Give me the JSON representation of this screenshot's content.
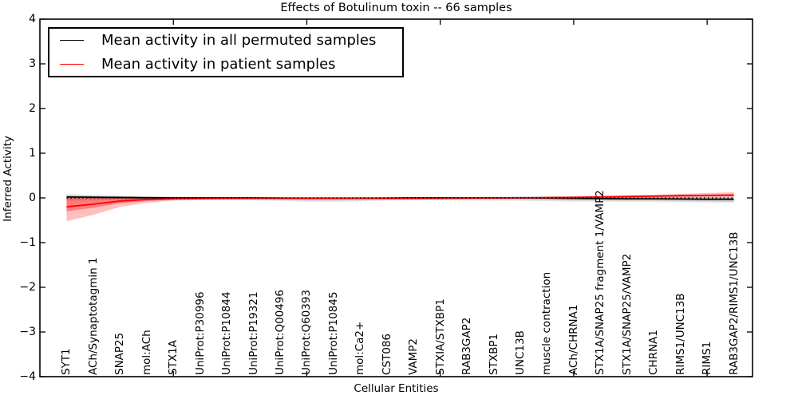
{
  "figure": {
    "title": "Effects of Botulinum toxin -- 66 samples",
    "xlabel": "Cellular Entities",
    "ylabel": "Inferred Activity"
  },
  "legend": {
    "position": "upper-left",
    "items": [
      {
        "label": "Mean activity in all permuted samples",
        "color": "#000000"
      },
      {
        "label": "Mean activity in patient samples",
        "color": "#ff0000"
      }
    ]
  },
  "chart_data": {
    "type": "line",
    "title": "Effects of Botulinum toxin -- 66 samples",
    "xlabel": "Cellular Entities",
    "ylabel": "Inferred Activity",
    "grid": false,
    "ylim": [
      -4,
      4
    ],
    "y_ticks": [
      4,
      3,
      2,
      1,
      0,
      -1,
      -2,
      -3,
      -4
    ],
    "y_tick_labels": [
      "4",
      "3",
      "2",
      "1",
      "0",
      "−1",
      "−2",
      "−3",
      "−4"
    ],
    "x_axis_range": [
      0,
      26.7
    ],
    "x_tick_values": [
      5,
      10,
      15,
      20,
      25
    ],
    "categories": [
      "SYT1",
      "ACh/Synaptotagmin 1",
      "SNAP25",
      "mol:ACh",
      "STX1A",
      "UniProt:P30996",
      "UniProt:P10844",
      "UniProt:P19321",
      "UniProt:Q00496",
      "UniProt:Q60393",
      "UniProt:P10845",
      "mol:Ca2+",
      "CST086",
      "VAMP2",
      "STXIA/STXBP1",
      "RAB3GAP2",
      "STXBP1",
      "UNC13B",
      "muscle contraction",
      "ACh/CHRNA1",
      "STX1A/SNAP25 fragment 1/VAMP2",
      "STX1A/SNAP25/VAMP2",
      "CHRNA1",
      "RIMS1/UNC13B",
      "RIMS1",
      "RAB3GAP2/RIMS1/UNC13B"
    ],
    "series": [
      {
        "id": "permuted",
        "name": "Mean activity in all permuted samples",
        "color": "#000000",
        "values": [
          0.02,
          0.015,
          0.01,
          0.005,
          0,
          0,
          0,
          0,
          -0.005,
          -0.01,
          -0.01,
          -0.01,
          -0.005,
          0,
          0,
          0,
          0,
          0,
          -0.005,
          -0.01,
          -0.015,
          -0.02,
          -0.02,
          -0.025,
          -0.03,
          -0.03
        ]
      },
      {
        "id": "patient",
        "name": "Mean activity in patient samples",
        "color": "#ff0000",
        "values": [
          -0.2,
          -0.14,
          -0.07,
          -0.035,
          -0.02,
          -0.015,
          -0.01,
          -0.01,
          -0.01,
          -0.01,
          -0.01,
          -0.01,
          -0.01,
          -0.01,
          -0.01,
          -0.005,
          0,
          0,
          0.005,
          0.01,
          0.02,
          0.03,
          0.04,
          0.05,
          0.055,
          0.06
        ]
      }
    ],
    "bands": [
      {
        "name": "permuted-outer",
        "color": "rgba(0,0,0,0.08)",
        "upper": [
          0.09,
          0.07,
          0.05,
          0.04,
          0.03,
          0.03,
          0.03,
          0.03,
          0.03,
          0.03,
          0.03,
          0.03,
          0.03,
          0.03,
          0.03,
          0.03,
          0.03,
          0.035,
          0.04,
          0.04,
          0.04,
          0.04,
          0.04,
          0.03,
          0.03,
          0.02
        ],
        "lower": [
          -0.07,
          -0.06,
          -0.05,
          -0.04,
          -0.04,
          -0.04,
          -0.045,
          -0.055,
          -0.07,
          -0.09,
          -0.09,
          -0.08,
          -0.06,
          -0.05,
          -0.05,
          -0.055,
          -0.06,
          -0.065,
          -0.075,
          -0.085,
          -0.09,
          -0.095,
          -0.1,
          -0.1,
          -0.11,
          -0.12
        ]
      },
      {
        "name": "permuted-inner",
        "color": "rgba(0,0,0,0.12)",
        "upper": [
          0.07,
          0.05,
          0.04,
          0.03,
          0.025,
          0.02,
          0.02,
          0.02,
          0.02,
          0.02,
          0.02,
          0.02,
          0.02,
          0.02,
          0.02,
          0.02,
          0.02,
          0.025,
          0.03,
          0.03,
          0.03,
          0.03,
          0.03,
          0.02,
          0.02,
          0.01
        ],
        "lower": [
          -0.05,
          -0.04,
          -0.035,
          -0.03,
          -0.03,
          -0.03,
          -0.03,
          -0.035,
          -0.05,
          -0.065,
          -0.065,
          -0.06,
          -0.045,
          -0.04,
          -0.04,
          -0.04,
          -0.045,
          -0.05,
          -0.055,
          -0.06,
          -0.065,
          -0.07,
          -0.07,
          -0.075,
          -0.08,
          -0.09
        ]
      },
      {
        "name": "patient-outer",
        "color": "rgba(255,0,0,0.25)",
        "upper": [
          0.02,
          0.015,
          0.01,
          0.01,
          0.01,
          0.005,
          0.005,
          0.005,
          0.005,
          0.005,
          0.005,
          0.005,
          0.005,
          0.005,
          0.01,
          0.01,
          0.015,
          0.02,
          0.03,
          0.035,
          0.05,
          0.06,
          0.07,
          0.09,
          0.11,
          0.125
        ],
        "lower": [
          -0.52,
          -0.38,
          -0.2,
          -0.11,
          -0.06,
          -0.045,
          -0.035,
          -0.03,
          -0.03,
          -0.03,
          -0.03,
          -0.03,
          -0.03,
          -0.03,
          -0.03,
          -0.025,
          -0.02,
          -0.015,
          -0.01,
          -0.005,
          0,
          0.005,
          0.01,
          0.015,
          0.02,
          0.02
        ]
      },
      {
        "name": "patient-inner",
        "color": "rgba(255,0,0,0.35)",
        "upper": [
          0,
          0,
          0.005,
          0.005,
          0.005,
          0,
          0,
          0,
          0,
          0,
          0,
          0,
          0,
          0,
          0,
          0.005,
          0.01,
          0.015,
          0.02,
          0.025,
          0.035,
          0.045,
          0.055,
          0.065,
          0.075,
          0.09
        ],
        "lower": [
          -0.3,
          -0.22,
          -0.12,
          -0.07,
          -0.04,
          -0.03,
          -0.02,
          -0.02,
          -0.02,
          -0.02,
          -0.02,
          -0.02,
          -0.02,
          -0.02,
          -0.02,
          -0.015,
          -0.01,
          -0.005,
          0,
          0,
          0.005,
          0.01,
          0.02,
          0.03,
          0.035,
          0.04
        ]
      }
    ],
    "zero_line": {
      "value": 0,
      "style": "dotted",
      "color": "#000000"
    }
  }
}
